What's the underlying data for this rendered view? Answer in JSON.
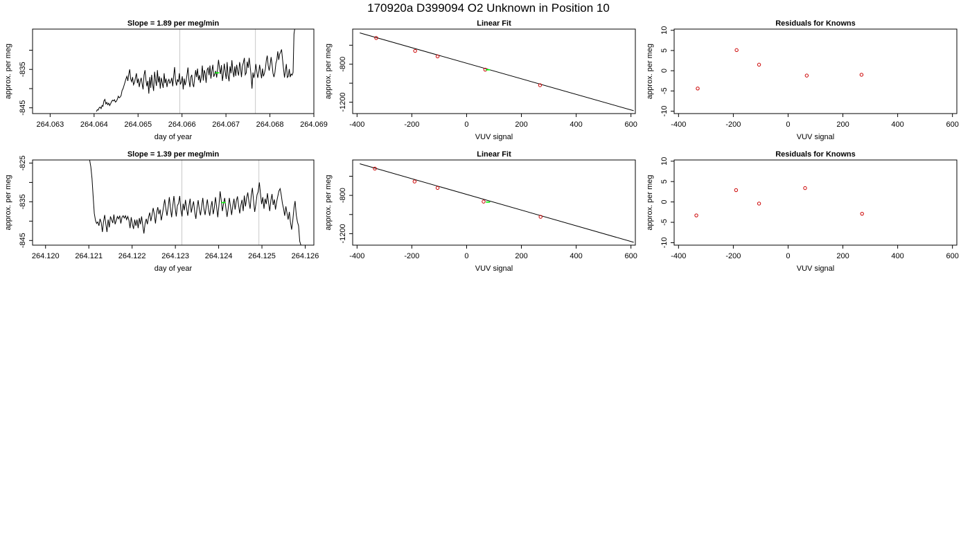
{
  "page": {
    "title": "170920a     D399094   O2 Unknown in Position  10"
  },
  "chart_data": [
    {
      "type": "line",
      "title": "Slope =  1.89  per meg/min",
      "xlabel": "day of year",
      "ylabel": "approx. per meg",
      "xlim": [
        264.0626,
        264.069
      ],
      "ylim": [
        -846.5,
        -824.5
      ],
      "xticks": [
        264.063,
        264.064,
        264.065,
        264.066,
        264.067,
        264.068,
        264.069
      ],
      "xtick_labels": [
        "264.063",
        "264.064",
        "264.065",
        "264.066",
        "264.067",
        "264.068",
        "264.069"
      ],
      "yticks": [
        -845,
        -840,
        -835,
        -830
      ],
      "ytick_labels": [
        "-845",
        "",
        "-835",
        ""
      ],
      "vlines": [
        264.06595,
        264.06767
      ],
      "series_color": "#000000",
      "x_start": 264.06405,
      "x_end": 264.06857,
      "y": [
        -846.0,
        -845.5,
        -845.6,
        -845.0,
        -844.8,
        -845.2,
        -844.4,
        -844.6,
        -843.2,
        -842.8,
        -844.0,
        -843.6,
        -844.2,
        -843.8,
        -844.4,
        -843.9,
        -843.4,
        -843.0,
        -843.2,
        -842.9,
        -843.5,
        -843.3,
        -842.8,
        -842.0,
        -842.4,
        -842.2,
        -841.8,
        -840.5,
        -840.0,
        -839.2,
        -838.4,
        -837.5,
        -836.8,
        -838.0,
        -836.2,
        -835.0,
        -837.5,
        -838.2,
        -837.0,
        -839.0,
        -838.4,
        -837.2,
        -836.0,
        -838.6,
        -837.4,
        -839.6,
        -838.1,
        -837.2,
        -838.8,
        -840.2,
        -836.5,
        -835.2,
        -837.8,
        -839.4,
        -838.0,
        -841.3,
        -837.0,
        -839.8,
        -836.4,
        -838.8,
        -840.6,
        -835.6,
        -837.8,
        -839.3,
        -835.2,
        -838.4,
        -836.8,
        -840.0,
        -837.2,
        -838.5,
        -839.8,
        -836.0,
        -838.6,
        -837.4,
        -839.6,
        -838.1,
        -837.6,
        -838.6,
        -838.2,
        -837.2,
        -839.4,
        -836.8,
        -834.4,
        -838.0,
        -839.2,
        -837.6,
        -838.3,
        -836.0,
        -838.9,
        -838.3,
        -836.8,
        -840.2,
        -837.4,
        -839.1,
        -838.0,
        -836.4,
        -834.5,
        -837.8,
        -839.6,
        -837.0,
        -836.4,
        -838.8,
        -839.6,
        -837.2,
        -835.2,
        -837.0,
        -834.8,
        -837.8,
        -836.5,
        -838.5,
        -836.9,
        -834.0,
        -837.9,
        -835.2,
        -836.0,
        -838.5,
        -835.1,
        -834.6,
        -836.5,
        -834.0,
        -837.4,
        -835.4,
        -833.8,
        -836.9,
        -836.2,
        -835.4,
        -837.1,
        -834.8,
        -832.5,
        -834.6,
        -836.2,
        -833.9,
        -838.0,
        -836.2,
        -833.5,
        -835.7,
        -837.5,
        -833.1,
        -836.6,
        -838.1,
        -834.2,
        -836.0,
        -832.6,
        -835.5,
        -837.0,
        -834.2,
        -836.7,
        -833.8,
        -835.5,
        -836.6,
        -833.1,
        -834.4,
        -837.0,
        -834.1,
        -833.2,
        -832.0,
        -836.4,
        -835.9,
        -833.0,
        -834.6,
        -832.0,
        -834.0,
        -836.4,
        -840.0,
        -835.8,
        -837.2,
        -836.0,
        -833.6,
        -835.4,
        -837.2,
        -836.0,
        -833.8,
        -835.6,
        -837.3,
        -834.8,
        -836.8,
        -836.0,
        -834.9,
        -832.6,
        -831.4,
        -834.0,
        -835.3,
        -833.8,
        -831.8,
        -833.6,
        -836.0,
        -837.0,
        -835.8,
        -833.4,
        -832.6,
        -830.3,
        -832.5,
        -831.0,
        -830.5,
        -829.8,
        -832.4,
        -834.8,
        -837.1,
        -835.4,
        -833.6,
        -837.1,
        -836.8,
        -834.9,
        -837.0,
        -836.2,
        -836.5,
        -835.8,
        -825.8,
        -824.0
      ],
      "marker": {
        "x": 264.0668,
        "y": -835.9,
        "color": "#00ff00"
      }
    },
    {
      "type": "scatter",
      "title": "Linear Fit",
      "xlabel": "VUV signal",
      "ylabel": "approx. per meg",
      "xlim": [
        -416,
        616
      ],
      "ylim": [
        -1320,
        -430
      ],
      "xticks": [
        -400,
        -200,
        0,
        200,
        400,
        600
      ],
      "xtick_labels": [
        "-400",
        "-200",
        "0",
        "200",
        "400",
        "600"
      ],
      "yticks": [
        -1200,
        -1000,
        -800,
        -600
      ],
      "ytick_labels": [
        "-1200",
        "",
        "-800",
        ""
      ],
      "fit_line": {
        "x": [
          -390,
          610
        ],
        "y": [
          -470,
          -1290
        ]
      },
      "points": {
        "x": [
          -330,
          -188,
          -106,
          68,
          268
        ],
        "y": [
          -524,
          -660,
          -718,
          -857,
          -1021
        ],
        "color": "#cc0000"
      },
      "unknown": {
        "x": [
          78
        ],
        "y": [
          -859
        ],
        "color": "#00ff00"
      }
    },
    {
      "type": "scatter",
      "title": "Residuals for Knowns",
      "xlabel": "VUV signal",
      "ylabel": "approx. per meg",
      "xlim": [
        -416,
        616
      ],
      "ylim": [
        -10.6,
        10.3
      ],
      "xticks": [
        -400,
        -200,
        0,
        200,
        400,
        600
      ],
      "xtick_labels": [
        "-400",
        "-200",
        "0",
        "200",
        "400",
        "600"
      ],
      "yticks": [
        -10,
        -5,
        0,
        5,
        10
      ],
      "ytick_labels": [
        "-10",
        "-5",
        "0",
        "5",
        "10"
      ],
      "points": {
        "x": [
          -330,
          -188,
          -106,
          68,
          268
        ],
        "y": [
          -4.4,
          5.1,
          1.5,
          -1.2,
          -1.0
        ],
        "color": "#cc0000"
      }
    },
    {
      "type": "line",
      "title": "Slope =  1.39  per meg/min",
      "xlabel": "day of year",
      "ylabel": "approx. per meg",
      "xlim": [
        264.1197,
        264.1262
      ],
      "ylim": [
        -846.2,
        -824.2
      ],
      "xticks": [
        264.12,
        264.121,
        264.122,
        264.123,
        264.124,
        264.125,
        264.126
      ],
      "xtick_labels": [
        "264.120",
        "264.121",
        "264.122",
        "264.123",
        "264.124",
        "264.125",
        "264.126"
      ],
      "yticks": [
        -845,
        -840,
        -835,
        -830,
        -825
      ],
      "ytick_labels": [
        "-845",
        "",
        "-835",
        "",
        "-825"
      ],
      "vlines": [
        264.12315,
        264.12493
      ],
      "series_color": "#000000",
      "x_start": 264.12102,
      "x_end": 264.1259,
      "y": [
        -824.2,
        -826.0,
        -829.0,
        -833.5,
        -838.0,
        -839.8,
        -840.6,
        -840.2,
        -841.2,
        -839.4,
        -840.4,
        -842.8,
        -840.2,
        -838.4,
        -840.8,
        -842.8,
        -839.6,
        -841.6,
        -838.8,
        -839.6,
        -840.5,
        -838.3,
        -840.8,
        -839.8,
        -838.8,
        -839.4,
        -838.6,
        -840.6,
        -839.0,
        -838.6,
        -839.2,
        -838.6,
        -839.6,
        -838.8,
        -839.8,
        -841.8,
        -839.0,
        -840.8,
        -842.0,
        -839.6,
        -841.2,
        -839.6,
        -841.8,
        -839.2,
        -840.8,
        -838.8,
        -841.2,
        -843.2,
        -840.6,
        -839.4,
        -840.8,
        -839.0,
        -837.8,
        -840.0,
        -838.4,
        -836.6,
        -838.2,
        -840.6,
        -837.8,
        -836.4,
        -838.2,
        -837.0,
        -839.8,
        -838.2,
        -836.2,
        -834.4,
        -836.8,
        -838.6,
        -836.4,
        -833.8,
        -836.6,
        -839.0,
        -836.0,
        -833.5,
        -836.4,
        -838.8,
        -836.0,
        -835.4,
        -833.5,
        -837.0,
        -838.8,
        -835.5,
        -837.2,
        -834.5,
        -836.8,
        -838.6,
        -836.0,
        -834.2,
        -837.8,
        -836.2,
        -834.9,
        -837.6,
        -839.4,
        -836.6,
        -834.6,
        -837.0,
        -838.5,
        -836.2,
        -834.0,
        -836.8,
        -838.4,
        -836.1,
        -834.4,
        -837.0,
        -838.6,
        -836.4,
        -834.8,
        -838.2,
        -836.6,
        -833.8,
        -836.4,
        -839.0,
        -835.9,
        -832.3,
        -834.6,
        -837.4,
        -835.4,
        -834.0,
        -836.6,
        -838.9,
        -836.8,
        -834.0,
        -836.2,
        -838.4,
        -836.0,
        -834.2,
        -837.0,
        -834.9,
        -833.6,
        -835.8,
        -838.0,
        -835.9,
        -834.5,
        -837.4,
        -833.4,
        -836.2,
        -834.0,
        -832.6,
        -835.0,
        -836.8,
        -833.4,
        -831.4,
        -834.8,
        -837.6,
        -835.6,
        -833.2,
        -832.4,
        -830.0,
        -833.0,
        -835.6,
        -833.8,
        -836.8,
        -834.2,
        -835.6,
        -832.8,
        -835.2,
        -837.4,
        -834.6,
        -833.0,
        -835.8,
        -834.4,
        -837.0,
        -835.0,
        -833.6,
        -832.2,
        -831.6,
        -833.2,
        -835.4,
        -836.8,
        -838.6,
        -836.2,
        -838.0,
        -839.6,
        -837.6,
        -840.4,
        -842.2,
        -839.8,
        -836.6,
        -834.8,
        -838.4,
        -840.2,
        -841.2,
        -845.2,
        -846.2
      ],
      "marker": {
        "x": 264.12411,
        "y": -835.2,
        "color": "#00ff00"
      }
    },
    {
      "type": "scatter",
      "title": "Linear Fit",
      "xlabel": "VUV signal",
      "ylabel": "approx. per meg",
      "xlim": [
        -416,
        616
      ],
      "ylim": [
        -1320,
        -430
      ],
      "xticks": [
        -400,
        -200,
        0,
        200,
        400,
        600
      ],
      "xtick_labels": [
        "-400",
        "-200",
        "0",
        "200",
        "400",
        "600"
      ],
      "yticks": [
        -1200,
        -1000,
        -800,
        -600
      ],
      "ytick_labels": [
        "-1200",
        "",
        "-800",
        ""
      ],
      "fit_line": {
        "x": [
          -390,
          610
        ],
        "y": [
          -470,
          -1290
        ]
      },
      "points": {
        "x": [
          -335,
          -190,
          -106,
          62,
          270
        ],
        "y": [
          -520,
          -655,
          -722,
          -865,
          -1024
        ],
        "color": "#cc0000"
      },
      "unknown": {
        "x": [
          78
        ],
        "y": [
          -870
        ],
        "color": "#00ff00"
      }
    },
    {
      "type": "scatter",
      "title": "Residuals for Knowns",
      "xlabel": "VUV signal",
      "ylabel": "approx. per meg",
      "xlim": [
        -416,
        616
      ],
      "ylim": [
        -10.6,
        10.3
      ],
      "xticks": [
        -400,
        -200,
        0,
        200,
        400,
        600
      ],
      "xtick_labels": [
        "-400",
        "-200",
        "0",
        "200",
        "400",
        "600"
      ],
      "yticks": [
        -10,
        -5,
        0,
        5,
        10
      ],
      "ytick_labels": [
        "-10",
        "-5",
        "0",
        "5",
        "10"
      ],
      "points": {
        "x": [
          -335,
          -190,
          -106,
          62,
          270
        ],
        "y": [
          -3.3,
          2.9,
          -0.4,
          3.4,
          -2.9
        ],
        "color": "#cc0000"
      }
    }
  ]
}
